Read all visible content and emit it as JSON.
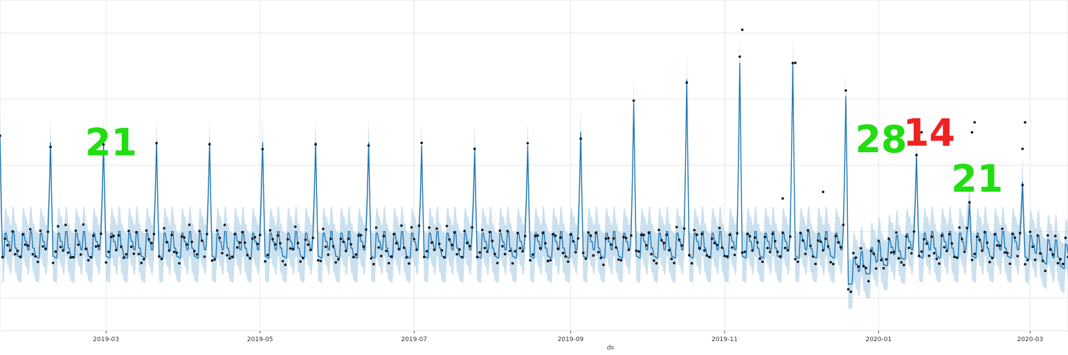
{
  "chart_data": {
    "type": "line",
    "xlabel": "ds",
    "ylabel": "",
    "grid": true,
    "x_range": [
      "2019-01-18",
      "2020-03-16"
    ],
    "y_range": [
      0,
      10
    ],
    "xticks": [
      "2019-03",
      "2019-05",
      "2019-07",
      "2019-09",
      "2019-11",
      "2020-01",
      "2020-03"
    ],
    "colors": {
      "forecast_line": "#1f77b4",
      "uncertainty_band": "#a9cde5",
      "observations": "#111111",
      "grid": "#e6e6e6",
      "annotation_green": "#22dd11",
      "annotation_red": "#ee2222"
    },
    "series": [
      {
        "kind": "forecast",
        "cycle_days": 7,
        "baseline": 2.5,
        "band_halfwidth": 0.75,
        "trough_peak_day": 1.35,
        "weekly_pattern": [
          0.1,
          -0.3,
          0.45,
          0.2,
          -0.05,
          0.5,
          0.0
        ],
        "spikes": [
          {
            "date": "2019-01-18",
            "peak": 5.9
          },
          {
            "date": "2019-02-07",
            "peak": 5.7
          },
          {
            "date": "2019-02-28",
            "peak": 5.7
          },
          {
            "date": "2019-03-21",
            "peak": 5.7
          },
          {
            "date": "2019-04-11",
            "peak": 5.7
          },
          {
            "date": "2019-05-02",
            "peak": 5.7
          },
          {
            "date": "2019-05-23",
            "peak": 5.7
          },
          {
            "date": "2019-06-13",
            "peak": 5.7
          },
          {
            "date": "2019-07-04",
            "peak": 5.6
          },
          {
            "date": "2019-07-25",
            "peak": 5.5
          },
          {
            "date": "2019-08-15",
            "peak": 5.6
          },
          {
            "date": "2019-09-05",
            "peak": 6.0
          },
          {
            "date": "2019-09-26",
            "peak": 6.9
          },
          {
            "date": "2019-10-17",
            "peak": 7.6
          },
          {
            "date": "2019-11-07",
            "peak": 8.1
          },
          {
            "date": "2019-11-28",
            "peak": 8.1
          },
          {
            "date": "2019-12-19",
            "peak": 7.1
          },
          {
            "date": "2020-01-16",
            "peak": 5.3
          },
          {
            "date": "2020-02-06",
            "peak": 3.9
          },
          {
            "date": "2020-02-27",
            "peak": 4.5
          }
        ],
        "dip": {
          "start": "2019-12-20",
          "end": "2020-01-13",
          "depth": 0.85
        },
        "late_drift": {
          "start": "2020-02-27",
          "end": "2020-03-16",
          "delta": -0.35
        }
      },
      {
        "kind": "observations",
        "noise": 0.22,
        "outliers": [
          {
            "date": "2019-11-08",
            "y": 9.1
          },
          {
            "date": "2019-11-29",
            "y": 8.1
          },
          {
            "date": "2020-02-08",
            "y": 6.3
          },
          {
            "date": "2020-02-07",
            "y": 6.0
          },
          {
            "date": "2020-02-28",
            "y": 6.3
          },
          {
            "date": "2020-02-27",
            "y": 5.5
          },
          {
            "date": "2019-12-10",
            "y": 4.2
          },
          {
            "date": "2019-11-24",
            "y": 4.0
          },
          {
            "date": "2020-01-18",
            "y": 6.0
          }
        ]
      }
    ],
    "annotations": [
      {
        "text": "21",
        "date": "2019-03-03",
        "y": 5.3,
        "color": "green"
      },
      {
        "text": "28",
        "date": "2020-01-02",
        "y": 5.4,
        "color": "green"
      },
      {
        "text": "14",
        "date": "2020-01-21",
        "y": 5.6,
        "color": "red"
      },
      {
        "text": "21",
        "date": "2020-02-09",
        "y": 4.2,
        "color": "green"
      }
    ]
  }
}
